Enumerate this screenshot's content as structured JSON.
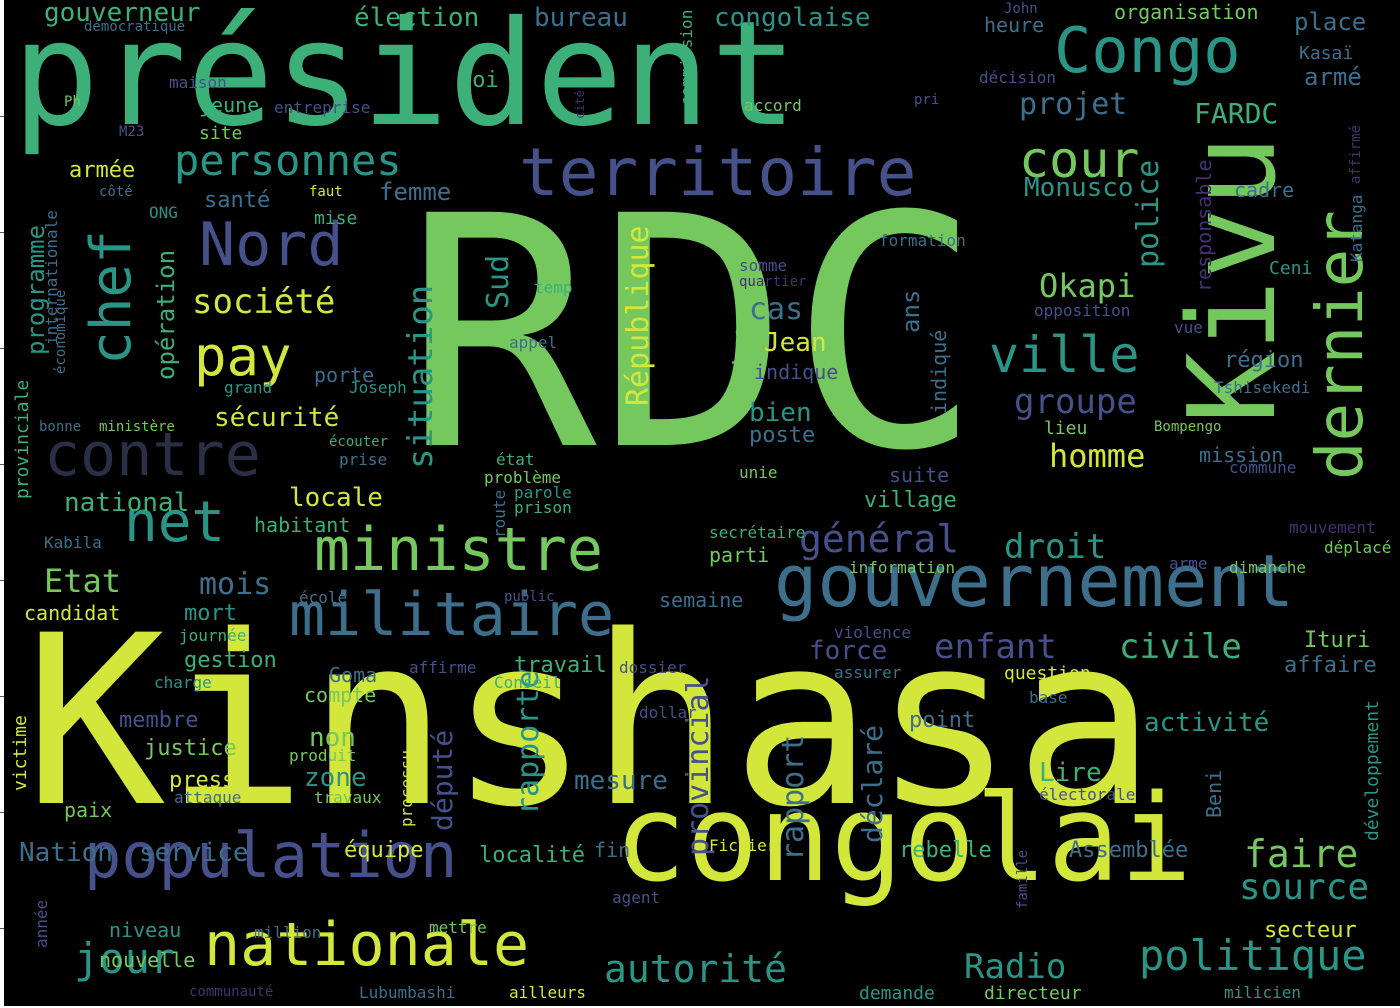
{
  "palette": {
    "background": "#000000",
    "c1": "#d3e63c",
    "c2": "#74c85e",
    "c3": "#3cb078",
    "c4": "#2a9587",
    "c5": "#3d6f8c",
    "c6": "#46508a",
    "c7": "#433170",
    "c8": "#44264f"
  },
  "words": [
    {
      "t": "Kinshasa",
      "c": "#d3e63c"
    },
    {
      "t": "RDC",
      "c": "#74c85e"
    },
    {
      "t": "président",
      "c": "#3cb078"
    },
    {
      "t": "Kivu",
      "c": "#74c85e"
    },
    {
      "t": "congolai",
      "c": "#d3e63c"
    },
    {
      "t": "gouvernement",
      "c": "#3d6f8c"
    },
    {
      "t": "territoire",
      "c": "#46508a"
    },
    {
      "t": "population",
      "c": "#46508a"
    },
    {
      "t": "militaire",
      "c": "#3d6f8c"
    },
    {
      "t": "ministre",
      "c": "#74c85e"
    },
    {
      "t": "nationale",
      "c": "#d3e63c"
    },
    {
      "t": "Congo",
      "c": "#2a9587"
    },
    {
      "t": "contre",
      "c": "#2a2f46"
    },
    {
      "t": "dernier",
      "c": "#74c85e"
    },
    {
      "t": "Nord",
      "c": "#46508a"
    },
    {
      "t": "net",
      "c": "#2a9587"
    },
    {
      "t": "chef",
      "c": "#2a9587"
    },
    {
      "t": "pay",
      "c": "#d3e63c"
    },
    {
      "t": "ville",
      "c": "#2a9587"
    },
    {
      "t": "cour",
      "c": "#74c85e"
    },
    {
      "t": "politique",
      "c": "#2a9587"
    },
    {
      "t": "autorité",
      "c": "#2a9587"
    },
    {
      "t": "jour",
      "c": "#2a9587"
    },
    {
      "t": "personnes",
      "c": "#2a9587"
    },
    {
      "t": "Radio",
      "c": "#2a9587"
    },
    {
      "t": "faire",
      "c": "#74c85e"
    },
    {
      "t": "source",
      "c": "#2a9587"
    },
    {
      "t": "général",
      "c": "#46508a"
    },
    {
      "t": "civile",
      "c": "#3cb078"
    },
    {
      "t": "enfant",
      "c": "#46508a"
    },
    {
      "t": "droit",
      "c": "#2a9587"
    },
    {
      "t": "groupe",
      "c": "#46508a"
    },
    {
      "t": "homme",
      "c": "#d3e63c"
    },
    {
      "t": "Okapi",
      "c": "#74c85e"
    },
    {
      "t": "société",
      "c": "#d3e63c"
    },
    {
      "t": "situation",
      "c": "#2a9587"
    },
    {
      "t": "Etat",
      "c": "#74c85e"
    },
    {
      "t": "mois",
      "c": "#3d6f8c"
    },
    {
      "t": "République",
      "c": "#d3e63c"
    },
    {
      "t": "Sud",
      "c": "#2a9587"
    },
    {
      "t": "police",
      "c": "#2a9587"
    },
    {
      "t": "cas",
      "c": "#3d6f8c"
    },
    {
      "t": "projet",
      "c": "#3d6f8c"
    },
    {
      "t": "FARDC",
      "c": "#3cb078"
    },
    {
      "t": "Monusco",
      "c": "#2a9587"
    },
    {
      "t": "provincial",
      "c": "#46508a"
    },
    {
      "t": "rapporte",
      "c": "#2a9587"
    },
    {
      "t": "rapport",
      "c": "#3d6f8c"
    },
    {
      "t": "déclaré",
      "c": "#3d6f8c"
    },
    {
      "t": "député",
      "c": "#46508a"
    },
    {
      "t": "Nation",
      "c": "#3d6f8c"
    },
    {
      "t": "service",
      "c": "#3d6f8c"
    },
    {
      "t": "force",
      "c": "#46508a"
    },
    {
      "t": "national",
      "c": "#3cb078"
    },
    {
      "t": "locale",
      "c": "#d3e63c"
    },
    {
      "t": "sécurité",
      "c": "#d3e63c"
    },
    {
      "t": "gouverneur",
      "c": "#3cb078"
    },
    {
      "t": "élection",
      "c": "#3cb078"
    },
    {
      "t": "bureau",
      "c": "#3d6f8c"
    },
    {
      "t": "congolaise",
      "c": "#2a9587"
    },
    {
      "t": "organisation",
      "c": "#74c85e"
    },
    {
      "t": "place",
      "c": "#3d6f8c"
    },
    {
      "t": "armé",
      "c": "#3d6f8c"
    },
    {
      "t": "Kasaï",
      "c": "#3d6f8c"
    },
    {
      "t": "heure",
      "c": "#3d6f8c"
    },
    {
      "t": "John",
      "c": "#46508a"
    },
    {
      "t": "décision",
      "c": "#46508a"
    },
    {
      "t": "accord",
      "c": "#74c85e"
    },
    {
      "t": "commission",
      "c": "#3cb078"
    },
    {
      "t": "cité",
      "c": "#433170"
    },
    {
      "t": "pri",
      "c": "#46508a"
    },
    {
      "t": "loi",
      "c": "#3cb078"
    },
    {
      "t": "maison",
      "c": "#46508a"
    },
    {
      "t": "jeune",
      "c": "#3cb078"
    },
    {
      "t": "entreprise",
      "c": "#46508a"
    },
    {
      "t": "site",
      "c": "#74c85e"
    },
    {
      "t": "M23",
      "c": "#46508a"
    },
    {
      "t": "Ph",
      "c": "#74c85e"
    },
    {
      "t": "démocratique",
      "c": "#3d6f8c"
    },
    {
      "t": "armée",
      "c": "#d3e63c"
    },
    {
      "t": "côté",
      "c": "#3d6f8c"
    },
    {
      "t": "santé",
      "c": "#3d6f8c"
    },
    {
      "t": "femme",
      "c": "#3d6f8c"
    },
    {
      "t": "faut",
      "c": "#d3e63c"
    },
    {
      "t": "mise",
      "c": "#3cb078"
    },
    {
      "t": "ONG",
      "c": "#2a9587"
    },
    {
      "t": "internationale",
      "c": "#3d6f8c"
    },
    {
      "t": "programme",
      "c": "#2a9587"
    },
    {
      "t": "provinciale",
      "c": "#3cb078"
    },
    {
      "t": "économique",
      "c": "#3d6f8c"
    },
    {
      "t": "opération",
      "c": "#3cb078"
    },
    {
      "t": "porte",
      "c": "#3d6f8c"
    },
    {
      "t": "Joseph",
      "c": "#2a9587"
    },
    {
      "t": "grand",
      "c": "#2a9587"
    },
    {
      "t": "bonne",
      "c": "#3d6f8c"
    },
    {
      "t": "ministère",
      "c": "#74c85e"
    },
    {
      "t": "écouter",
      "c": "#3cb078"
    },
    {
      "t": "prise",
      "c": "#3d6f8c"
    },
    {
      "t": "habitant",
      "c": "#3cb078"
    },
    {
      "t": "Kabila",
      "c": "#3d6f8c"
    },
    {
      "t": "candidat",
      "c": "#d3e63c"
    },
    {
      "t": "mort",
      "c": "#2a9587"
    },
    {
      "t": "journée",
      "c": "#3cb078"
    },
    {
      "t": "gestion",
      "c": "#3cb078"
    },
    {
      "t": "charge",
      "c": "#2a9587"
    },
    {
      "t": "Goma",
      "c": "#3d6f8c"
    },
    {
      "t": "compte",
      "c": "#74c85e"
    },
    {
      "t": "membre",
      "c": "#46508a"
    },
    {
      "t": "non",
      "c": "#74c85e"
    },
    {
      "t": "zone",
      "c": "#2a9587"
    },
    {
      "t": "justice",
      "c": "#74c85e"
    },
    {
      "t": "presse",
      "c": "#d3e63c"
    },
    {
      "t": "produit",
      "c": "#74c85e"
    },
    {
      "t": "attaque",
      "c": "#3d6f8c"
    },
    {
      "t": "travaux",
      "c": "#74c85e"
    },
    {
      "t": "paix",
      "c": "#74c85e"
    },
    {
      "t": "victime",
      "c": "#d3e63c"
    },
    {
      "t": "processu",
      "c": "#d3e63c"
    },
    {
      "t": "année",
      "c": "#46508a"
    },
    {
      "t": "niveau",
      "c": "#2a9587"
    },
    {
      "t": "million",
      "c": "#3d6f8c"
    },
    {
      "t": "nouvelle",
      "c": "#74c85e"
    },
    {
      "t": "communauté",
      "c": "#433170"
    },
    {
      "t": "mettre",
      "c": "#74c85e"
    },
    {
      "t": "Lubumbashi",
      "c": "#3d6f8c"
    },
    {
      "t": "ailleurs",
      "c": "#d3e63c"
    },
    {
      "t": "demande",
      "c": "#2a9587"
    },
    {
      "t": "directeur",
      "c": "#74c85e"
    },
    {
      "t": "milicien",
      "c": "#2a9587"
    },
    {
      "t": "Fichier",
      "c": "#d3e63c"
    },
    {
      "t": "agent",
      "c": "#46508a"
    },
    {
      "t": "famille",
      "c": "#46508a"
    },
    {
      "t": "fin",
      "c": "#3d6f8c"
    },
    {
      "t": "localité",
      "c": "#3cb078"
    },
    {
      "t": "équipe",
      "c": "#d3e63c"
    },
    {
      "t": "rebelle",
      "c": "#3cb078"
    },
    {
      "t": "Assemblée",
      "c": "#3d6f8c"
    },
    {
      "t": "secteur",
      "c": "#d3e63c"
    },
    {
      "t": "électorale",
      "c": "#46508a"
    },
    {
      "t": "Beni",
      "c": "#3d6f8c"
    },
    {
      "t": "développement",
      "c": "#2a9587"
    },
    {
      "t": "Lire",
      "c": "#3cb078"
    },
    {
      "t": "mesure",
      "c": "#3d6f8c"
    },
    {
      "t": "activité",
      "c": "#2a9587"
    },
    {
      "t": "point",
      "c": "#3d6f8c"
    },
    {
      "t": "dollar",
      "c": "#46508a"
    },
    {
      "t": "base",
      "c": "#3d6f8c"
    },
    {
      "t": "question",
      "c": "#d3e63c"
    },
    {
      "t": "assurer",
      "c": "#3d6f8c"
    },
    {
      "t": "Ituri",
      "c": "#74c85e"
    },
    {
      "t": "affaire",
      "c": "#3d6f8c"
    },
    {
      "t": "violence",
      "c": "#46508a"
    },
    {
      "t": "travail",
      "c": "#3cb078"
    },
    {
      "t": "dossier",
      "c": "#46508a"
    },
    {
      "t": "affirme",
      "c": "#46508a"
    },
    {
      "t": "Conseil",
      "c": "#3cb078"
    },
    {
      "t": "semaine",
      "c": "#3d6f8c"
    },
    {
      "t": "public",
      "c": "#46508a"
    },
    {
      "t": "école",
      "c": "#3d6f8c"
    },
    {
      "t": "parti",
      "c": "#74c85e"
    },
    {
      "t": "information",
      "c": "#74c85e"
    },
    {
      "t": "arme",
      "c": "#46508a"
    },
    {
      "t": "dimanche",
      "c": "#74c85e"
    },
    {
      "t": "déplacé",
      "c": "#74c85e"
    },
    {
      "t": "mouvement",
      "c": "#433170"
    },
    {
      "t": "secrétaire",
      "c": "#3cb078"
    },
    {
      "t": "route",
      "c": "#3d6f8c"
    },
    {
      "t": "prison",
      "c": "#3cb078"
    },
    {
      "t": "parole",
      "c": "#2a9587"
    },
    {
      "t": "problème",
      "c": "#74c85e"
    },
    {
      "t": "état",
      "c": "#3cb078"
    },
    {
      "t": "unie",
      "c": "#74c85e"
    },
    {
      "t": "suite",
      "c": "#46508a"
    },
    {
      "t": "village",
      "c": "#3cb078"
    },
    {
      "t": "centre",
      "c": "#74c85e"
    },
    {
      "t": "poste",
      "c": "#3d6f8c"
    },
    {
      "t": "bien",
      "c": "#2a9587"
    },
    {
      "t": "indique",
      "c": "#46508a"
    },
    {
      "t": "Jean",
      "c": "#d3e63c"
    },
    {
      "t": "ans",
      "c": "#3d6f8c"
    },
    {
      "t": "indiqué",
      "c": "#3d6f8c"
    },
    {
      "t": "lieu",
      "c": "#74c85e"
    },
    {
      "t": "Bompengo",
      "c": "#74c85e"
    },
    {
      "t": "mission",
      "c": "#3d6f8c"
    },
    {
      "t": "commune",
      "c": "#46508a"
    },
    {
      "t": "Tshisekedi",
      "c": "#3d6f8c"
    },
    {
      "t": "région",
      "c": "#3d6f8c"
    },
    {
      "t": "vue",
      "c": "#46508a"
    },
    {
      "t": "opposition",
      "c": "#46508a"
    },
    {
      "t": "responsable",
      "c": "#433170"
    },
    {
      "t": "Ceni",
      "c": "#2a9587"
    },
    {
      "t": "formation",
      "c": "#3d6f8c"
    },
    {
      "t": "cadre",
      "c": "#3d6f8c"
    },
    {
      "t": "affirmé",
      "c": "#433170"
    },
    {
      "t": "Katanga",
      "c": "#3d6f8c"
    },
    {
      "t": "somme",
      "c": "#46508a"
    },
    {
      "t": "quartier",
      "c": "#433170"
    },
    {
      "t": "temp",
      "c": "#3cb078"
    },
    {
      "t": "appel",
      "c": "#3d6f8c"
    }
  ]
}
